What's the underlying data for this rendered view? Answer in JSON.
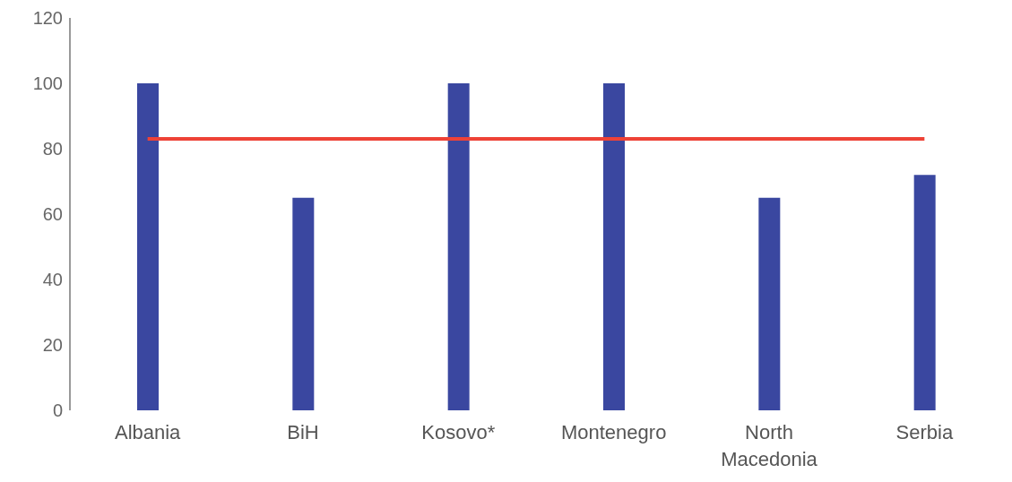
{
  "chart_data": {
    "type": "bar",
    "categories": [
      "Albania",
      "BiH",
      "Kosovo*",
      "Montenegro",
      "North Macedonia",
      "Serbia"
    ],
    "series": [
      {
        "color": "#3a47a0",
        "values": [
          100,
          65,
          100,
          100,
          65,
          72
        ]
      },
      {
        "type": "line",
        "color": "#ee4236",
        "values": [
          83,
          83,
          83,
          83,
          83,
          83
        ]
      }
    ],
    "ylim": [
      0,
      120
    ],
    "yticks": [
      0,
      20,
      40,
      60,
      80,
      100,
      120
    ],
    "grid": false,
    "legend": false,
    "marker": "none"
  }
}
